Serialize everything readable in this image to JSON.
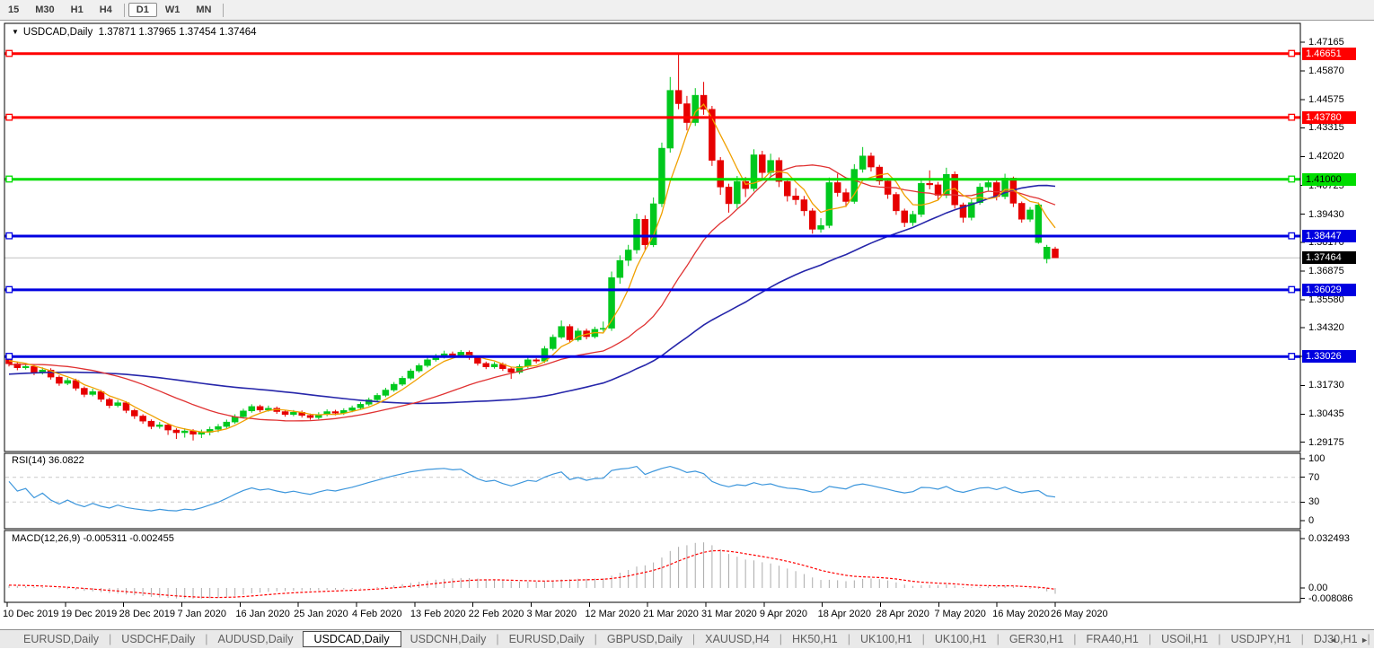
{
  "toolbar": {
    "timeframes": [
      "15",
      "M30",
      "H1",
      "H4",
      "D1",
      "W1",
      "MN"
    ],
    "active": "D1",
    "separators_after": [
      "H4",
      "MN"
    ]
  },
  "chart": {
    "title": {
      "dropdown_icon": "▼",
      "symbol": "USDCAD,Daily",
      "open": "1.37871",
      "high": "1.37965",
      "low": "1.37454",
      "close": "1.37464"
    },
    "price_axis": {
      "ticks": [
        "1.47165",
        "1.45870",
        "1.44575",
        "1.43315",
        "1.42020",
        "1.40725",
        "1.39430",
        "1.38170",
        "1.36875",
        "1.35580",
        "1.34320",
        "1.33025",
        "1.31730",
        "1.30435",
        "1.29175"
      ]
    },
    "date_axis": [
      "10 Dec 2019",
      "19 Dec 2019",
      "28 Dec 2019",
      "7 Jan 2020",
      "16 Jan 2020",
      "25 Jan 2020",
      "4 Feb 2020",
      "13 Feb 2020",
      "22 Feb 2020",
      "3 Mar 2020",
      "12 Mar 2020",
      "21 Mar 2020",
      "31 Mar 2020",
      "9 Apr 2020",
      "18 Apr 2020",
      "28 Apr 2020",
      "7 May 2020",
      "16 May 2020",
      "26 May 2020"
    ],
    "hlines": [
      {
        "price": 1.46651,
        "label": "1.46651",
        "color": "#ff0000",
        "text": "#ffffff"
      },
      {
        "price": 1.4378,
        "label": "1.43780",
        "color": "#ff0000",
        "text": "#ffffff"
      },
      {
        "price": 1.41,
        "label": "1.41000",
        "color": "#00dd00",
        "text": "#000000"
      },
      {
        "price": 1.38447,
        "label": "1.38447",
        "color": "#0000e0",
        "text": "#ffffff"
      },
      {
        "price": 1.36029,
        "label": "1.36029",
        "color": "#0000e0",
        "text": "#ffffff"
      },
      {
        "price": 1.33026,
        "label": "1.33026",
        "color": "#0000e0",
        "text": "#ffffff"
      }
    ],
    "current_price": {
      "value": 1.37464,
      "label": "1.37464",
      "line_color": "#c0c0c0",
      "badge_color": "#000000",
      "text": "#ffffff"
    }
  },
  "rsi_panel": {
    "name": "RSI(14)",
    "value": "36.0822",
    "scale": [
      "100",
      "70",
      "30",
      "0"
    ],
    "levels": [
      70,
      30
    ],
    "line_color": "#3c96dc",
    "level_color": "#c8c8c8"
  },
  "macd_panel": {
    "name": "MACD(12,26,9)",
    "main_value": "-0.005311",
    "signal_value": "-0.002455",
    "scale_top": "0.032493",
    "scale_zero": "0.00",
    "scale_bottom": "-0.008086",
    "histogram_color": "#ababab",
    "signal_color": "#ff0000"
  },
  "tabs": {
    "items": [
      "EURUSD,Daily",
      "USDCHF,Daily",
      "AUDUSD,Daily",
      "USDCAD,Daily",
      "USDCNH,Daily",
      "EURUSD,Daily",
      "GBPUSD,Daily",
      "XAUUSD,H4",
      "HK50,H1",
      "UK100,H1",
      "UK100,H1",
      "GER30,H1",
      "FRA40,H1",
      "USOil,H1",
      "USDJPY,H1",
      "DJ30,H1"
    ],
    "active_index": 3,
    "scroll_left_icon": "◄",
    "scroll_right_icon": "►"
  },
  "chart_data": {
    "type": "candlestick",
    "symbol": "USDCAD",
    "timeframe": "Daily",
    "price_range": [
      1.28754,
      1.48014
    ],
    "bull_color": "#00c81e",
    "bear_color": "#e60000",
    "ma": {
      "fast": {
        "period": 5,
        "color": "#f0a000"
      },
      "mid": {
        "period": 20,
        "color": "#e03232"
      },
      "slow": {
        "period": 50,
        "color": "#2626aa"
      }
    },
    "indicator_seed": 1.315,
    "rsi_period": 14,
    "macd": {
      "fast": 12,
      "slow": 26,
      "signal": 9
    },
    "candles": [
      [
        1.3292,
        1.3301,
        1.3258,
        1.327
      ],
      [
        1.327,
        1.328,
        1.3241,
        1.3252
      ],
      [
        1.3252,
        1.3272,
        1.3244,
        1.3258
      ],
      [
        1.3258,
        1.3266,
        1.3219,
        1.323
      ],
      [
        1.323,
        1.3254,
        1.3222,
        1.3242
      ],
      [
        1.3242,
        1.325,
        1.3199,
        1.321
      ],
      [
        1.321,
        1.3218,
        1.3171,
        1.3182
      ],
      [
        1.3182,
        1.3207,
        1.3174,
        1.3195
      ],
      [
        1.3195,
        1.3203,
        1.3149,
        1.316
      ],
      [
        1.316,
        1.3168,
        1.312,
        1.3132
      ],
      [
        1.3132,
        1.3158,
        1.3124,
        1.3145
      ],
      [
        1.3145,
        1.3152,
        1.3098,
        1.311
      ],
      [
        1.311,
        1.3118,
        1.307,
        1.3082
      ],
      [
        1.3082,
        1.3107,
        1.3074,
        1.3095
      ],
      [
        1.3095,
        1.3102,
        1.3048,
        1.306
      ],
      [
        1.306,
        1.3068,
        1.3022,
        1.3035
      ],
      [
        1.3035,
        1.3043,
        1.3,
        1.3012
      ],
      [
        1.3012,
        1.302,
        1.2976,
        1.2988
      ],
      [
        1.2988,
        1.3008,
        1.2978,
        1.2995
      ],
      [
        1.2995,
        1.3002,
        1.295,
        1.2972
      ],
      [
        1.2972,
        1.298,
        1.2932,
        1.296
      ],
      [
        1.296,
        1.298,
        1.2938,
        1.2968
      ],
      [
        1.2968,
        1.2976,
        1.2925,
        1.2953
      ],
      [
        1.2953,
        1.2974,
        1.2936,
        1.2962
      ],
      [
        1.2962,
        1.2987,
        1.2948,
        1.2975
      ],
      [
        1.2975,
        1.2999,
        1.2962,
        1.2988
      ],
      [
        1.2988,
        1.3019,
        1.298,
        1.3008
      ],
      [
        1.3008,
        1.3043,
        1.3,
        1.3032
      ],
      [
        1.3032,
        1.3068,
        1.3024,
        1.3058
      ],
      [
        1.3058,
        1.3088,
        1.305,
        1.3078
      ],
      [
        1.3078,
        1.3086,
        1.3052,
        1.3062
      ],
      [
        1.3062,
        1.3082,
        1.3055,
        1.307
      ],
      [
        1.307,
        1.3078,
        1.3045,
        1.3055
      ],
      [
        1.3055,
        1.3063,
        1.3032,
        1.3042
      ],
      [
        1.3042,
        1.3062,
        1.3034,
        1.3052
      ],
      [
        1.3052,
        1.306,
        1.3028,
        1.3038
      ],
      [
        1.3038,
        1.3046,
        1.3018,
        1.3028
      ],
      [
        1.3028,
        1.3052,
        1.302,
        1.3042
      ],
      [
        1.3042,
        1.3065,
        1.3034,
        1.3055
      ],
      [
        1.3055,
        1.3063,
        1.3038,
        1.3048
      ],
      [
        1.3048,
        1.307,
        1.304,
        1.306
      ],
      [
        1.306,
        1.3082,
        1.3052,
        1.3072
      ],
      [
        1.3072,
        1.3098,
        1.3064,
        1.3088
      ],
      [
        1.3088,
        1.3118,
        1.308,
        1.3108
      ],
      [
        1.3108,
        1.3138,
        1.31,
        1.3128
      ],
      [
        1.3128,
        1.3162,
        1.312,
        1.3152
      ],
      [
        1.3152,
        1.3188,
        1.3144,
        1.3178
      ],
      [
        1.3178,
        1.3215,
        1.317,
        1.3205
      ],
      [
        1.3205,
        1.3248,
        1.3197,
        1.3238
      ],
      [
        1.3238,
        1.3272,
        1.323,
        1.3262
      ],
      [
        1.3262,
        1.3298,
        1.3254,
        1.3288
      ],
      [
        1.3288,
        1.3314,
        1.328,
        1.3302
      ],
      [
        1.3302,
        1.3329,
        1.3294,
        1.3315
      ],
      [
        1.3315,
        1.3325,
        1.3298,
        1.3308
      ],
      [
        1.3308,
        1.3332,
        1.33,
        1.3322
      ],
      [
        1.3322,
        1.333,
        1.3288,
        1.3298
      ],
      [
        1.3298,
        1.3306,
        1.3262,
        1.3272
      ],
      [
        1.3272,
        1.328,
        1.3246,
        1.3256
      ],
      [
        1.3256,
        1.3278,
        1.3248,
        1.3268
      ],
      [
        1.3268,
        1.3276,
        1.3238,
        1.3248
      ],
      [
        1.3248,
        1.3256,
        1.3202,
        1.3232
      ],
      [
        1.3232,
        1.3268,
        1.3224,
        1.3258
      ],
      [
        1.3258,
        1.3298,
        1.325,
        1.3288
      ],
      [
        1.3288,
        1.3296,
        1.3272,
        1.3282
      ],
      [
        1.3282,
        1.335,
        1.3274,
        1.3338
      ],
      [
        1.3338,
        1.3402,
        1.333,
        1.339
      ],
      [
        1.339,
        1.3465,
        1.3382,
        1.3438
      ],
      [
        1.3438,
        1.3448,
        1.3366,
        1.3378
      ],
      [
        1.3378,
        1.343,
        1.337,
        1.3418
      ],
      [
        1.3418,
        1.3428,
        1.338,
        1.3392
      ],
      [
        1.3392,
        1.3437,
        1.3384,
        1.3425
      ],
      [
        1.3425,
        1.346,
        1.3415,
        1.343
      ],
      [
        1.343,
        1.3685,
        1.3418,
        1.3658
      ],
      [
        1.3658,
        1.3758,
        1.363,
        1.3735
      ],
      [
        1.3735,
        1.3805,
        1.371,
        1.3782
      ],
      [
        1.3782,
        1.3945,
        1.3765,
        1.392
      ],
      [
        1.392,
        1.3938,
        1.378,
        1.3805
      ],
      [
        1.3805,
        1.4018,
        1.3795,
        1.399
      ],
      [
        1.399,
        1.4265,
        1.3975,
        1.424
      ],
      [
        1.424,
        1.456,
        1.422,
        1.45
      ],
      [
        1.45,
        1.4669,
        1.4415,
        1.444
      ],
      [
        1.444,
        1.4475,
        1.432,
        1.4355
      ],
      [
        1.4355,
        1.451,
        1.434,
        1.4478
      ],
      [
        1.4478,
        1.4538,
        1.439,
        1.4415
      ],
      [
        1.4415,
        1.443,
        1.416,
        1.4185
      ],
      [
        1.4185,
        1.42,
        1.403,
        1.4065
      ],
      [
        1.4065,
        1.408,
        1.395,
        1.399
      ],
      [
        1.399,
        1.4115,
        1.397,
        1.409
      ],
      [
        1.409,
        1.411,
        1.402,
        1.4058
      ],
      [
        1.4058,
        1.4235,
        1.4045,
        1.421
      ],
      [
        1.421,
        1.4228,
        1.4105,
        1.413
      ],
      [
        1.413,
        1.4215,
        1.411,
        1.4185
      ],
      [
        1.4185,
        1.4198,
        1.4065,
        1.409
      ],
      [
        1.409,
        1.4102,
        1.4,
        1.4025
      ],
      [
        1.4025,
        1.406,
        1.3985,
        1.4008
      ],
      [
        1.4008,
        1.4025,
        1.3935,
        1.3958
      ],
      [
        1.3958,
        1.397,
        1.3855,
        1.3875
      ],
      [
        1.3875,
        1.3925,
        1.386,
        1.3892
      ],
      [
        1.3892,
        1.4108,
        1.388,
        1.4085
      ],
      [
        1.4085,
        1.4125,
        1.4022,
        1.404
      ],
      [
        1.404,
        1.4058,
        1.3975,
        1.4
      ],
      [
        1.4,
        1.4168,
        1.399,
        1.4145
      ],
      [
        1.4145,
        1.4245,
        1.413,
        1.4205
      ],
      [
        1.4205,
        1.422,
        1.4135,
        1.4155
      ],
      [
        1.4155,
        1.4165,
        1.4075,
        1.4092
      ],
      [
        1.4092,
        1.4102,
        1.4012,
        1.4032
      ],
      [
        1.4032,
        1.4042,
        1.394,
        1.3958
      ],
      [
        1.3958,
        1.3968,
        1.3885,
        1.3905
      ],
      [
        1.3905,
        1.3958,
        1.389,
        1.3942
      ],
      [
        1.3942,
        1.4102,
        1.393,
        1.4082
      ],
      [
        1.4082,
        1.414,
        1.4055,
        1.4075
      ],
      [
        1.4075,
        1.4088,
        1.4008,
        1.4028
      ],
      [
        1.4028,
        1.4152,
        1.4015,
        1.4122
      ],
      [
        1.4122,
        1.4135,
        1.3968,
        1.3985
      ],
      [
        1.3985,
        1.3995,
        1.3905,
        1.3928
      ],
      [
        1.3928,
        1.4012,
        1.3915,
        1.3995
      ],
      [
        1.3995,
        1.4082,
        1.3985,
        1.4065
      ],
      [
        1.4065,
        1.4098,
        1.4048,
        1.4085
      ],
      [
        1.4085,
        1.4095,
        1.4005,
        1.4022
      ],
      [
        1.4022,
        1.4125,
        1.401,
        1.4105
      ],
      [
        1.4105,
        1.4112,
        1.3975,
        1.3992
      ],
      [
        1.3992,
        1.4,
        1.3905,
        1.392
      ],
      [
        1.392,
        1.3975,
        1.3908,
        1.3962
      ],
      [
        1.3815,
        1.3996,
        1.381,
        1.3985
      ],
      [
        1.3742,
        1.3805,
        1.3722,
        1.3795
      ],
      [
        1.37871,
        1.37965,
        1.37454,
        1.37464
      ]
    ]
  }
}
